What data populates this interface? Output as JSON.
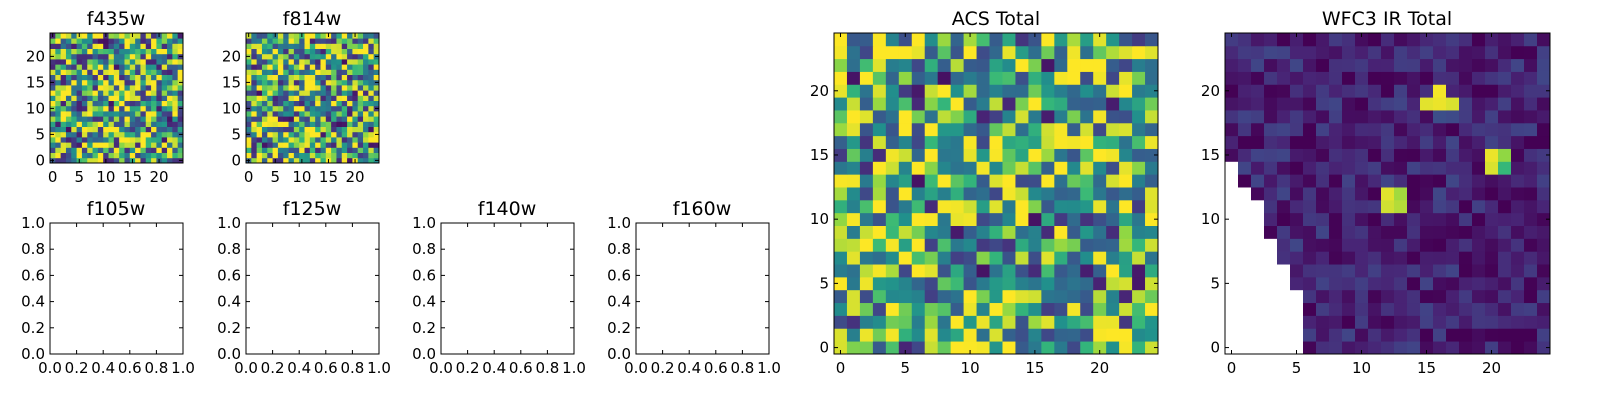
{
  "colors": {
    "background": "#ffffff",
    "axes": "#000000",
    "colormap": "viridis",
    "nan": "#ffffff"
  },
  "chart_data": [
    {
      "id": "f435w",
      "type": "heatmap",
      "title": "f435w",
      "grid_size": 25,
      "xlim": [
        -0.5,
        24.5
      ],
      "ylim": [
        -0.5,
        24.5
      ],
      "xticks": [
        0,
        5,
        10,
        15,
        20
      ],
      "yticks": [
        0,
        5,
        10,
        15,
        20
      ],
      "colormap": "viridis",
      "value_range": [
        0,
        1
      ],
      "seed": 11,
      "base": 0.62,
      "spread": 0.5
    },
    {
      "id": "f814w",
      "type": "heatmap",
      "title": "f814w",
      "grid_size": 25,
      "xlim": [
        -0.5,
        24.5
      ],
      "ylim": [
        -0.5,
        24.5
      ],
      "xticks": [
        0,
        5,
        10,
        15,
        20
      ],
      "yticks": [
        0,
        5,
        10,
        15,
        20
      ],
      "colormap": "viridis",
      "value_range": [
        0,
        1
      ],
      "seed": 29,
      "base": 0.64,
      "spread": 0.5
    },
    {
      "id": "f105w",
      "type": "empty",
      "title": "f105w",
      "xlim": [
        0,
        1
      ],
      "ylim": [
        0,
        1
      ],
      "xticks": [
        "0.0",
        "0.2",
        "0.4",
        "0.6",
        "0.8",
        "1.0"
      ],
      "yticks": [
        "0.0",
        "0.2",
        "0.4",
        "0.6",
        "0.8",
        "1.0"
      ]
    },
    {
      "id": "f125w",
      "type": "empty",
      "title": "f125w",
      "xlim": [
        0,
        1
      ],
      "ylim": [
        0,
        1
      ],
      "xticks": [
        "0.0",
        "0.2",
        "0.4",
        "0.6",
        "0.8",
        "1.0"
      ],
      "yticks": [
        "0.0",
        "0.2",
        "0.4",
        "0.6",
        "0.8",
        "1.0"
      ]
    },
    {
      "id": "f140w",
      "type": "empty",
      "title": "f140w",
      "xlim": [
        0,
        1
      ],
      "ylim": [
        0,
        1
      ],
      "xticks": [
        "0.0",
        "0.2",
        "0.4",
        "0.6",
        "0.8",
        "1.0"
      ],
      "yticks": [
        "0.0",
        "0.2",
        "0.4",
        "0.6",
        "0.8",
        "1.0"
      ]
    },
    {
      "id": "f160w",
      "type": "empty",
      "title": "f160w",
      "xlim": [
        0,
        1
      ],
      "ylim": [
        0,
        1
      ],
      "xticks": [
        "0.0",
        "0.2",
        "0.4",
        "0.6",
        "0.8",
        "1.0"
      ],
      "yticks": [
        "0.0",
        "0.2",
        "0.4",
        "0.6",
        "0.8",
        "1.0"
      ]
    },
    {
      "id": "acs-total",
      "type": "heatmap",
      "title": "ACS Total",
      "grid_size": 25,
      "xlim": [
        -0.5,
        24.5
      ],
      "ylim": [
        -0.5,
        24.5
      ],
      "xticks": [
        0,
        5,
        10,
        15,
        20
      ],
      "yticks": [
        0,
        5,
        10,
        15,
        20
      ],
      "colormap": "viridis",
      "value_range": [
        0,
        1
      ],
      "seed": 47,
      "base": 0.68,
      "spread": 0.42
    },
    {
      "id": "wfc3-ir-total",
      "type": "heatmap",
      "title": "WFC3 IR Total",
      "grid_size": 25,
      "xlim": [
        -0.5,
        24.5
      ],
      "ylim": [
        -0.5,
        24.5
      ],
      "xticks": [
        0,
        5,
        10,
        15,
        20
      ],
      "yticks": [
        0,
        5,
        10,
        15,
        20
      ],
      "colormap": "viridis",
      "value_range": [
        0,
        1
      ],
      "seed": 83,
      "base": 0.12,
      "spread": 0.14,
      "nan_cells_per_row": [
        6,
        6,
        6,
        6,
        6,
        5,
        5,
        4,
        4,
        3,
        3,
        3,
        2,
        1,
        1,
        0,
        0,
        0,
        0,
        0,
        0,
        0,
        0,
        0,
        0
      ],
      "bright_cells": [
        {
          "x": 12,
          "y": 11,
          "value": 0.95
        },
        {
          "x": 13,
          "y": 11,
          "value": 0.92
        },
        {
          "x": 12,
          "y": 12,
          "value": 0.97
        },
        {
          "x": 13,
          "y": 12,
          "value": 0.9
        },
        {
          "x": 20,
          "y": 14,
          "value": 0.96
        },
        {
          "x": 21,
          "y": 14,
          "value": 0.75
        },
        {
          "x": 20,
          "y": 15,
          "value": 0.98
        },
        {
          "x": 21,
          "y": 15,
          "value": 0.88
        },
        {
          "x": 15,
          "y": 19,
          "value": 0.97
        },
        {
          "x": 16,
          "y": 19,
          "value": 0.98
        },
        {
          "x": 17,
          "y": 19,
          "value": 0.96
        },
        {
          "x": 16,
          "y": 20,
          "value": 0.99
        },
        {
          "x": 16,
          "y": 18,
          "value": 0.3
        },
        {
          "x": 17,
          "y": 18,
          "value": 0.28
        }
      ]
    }
  ]
}
